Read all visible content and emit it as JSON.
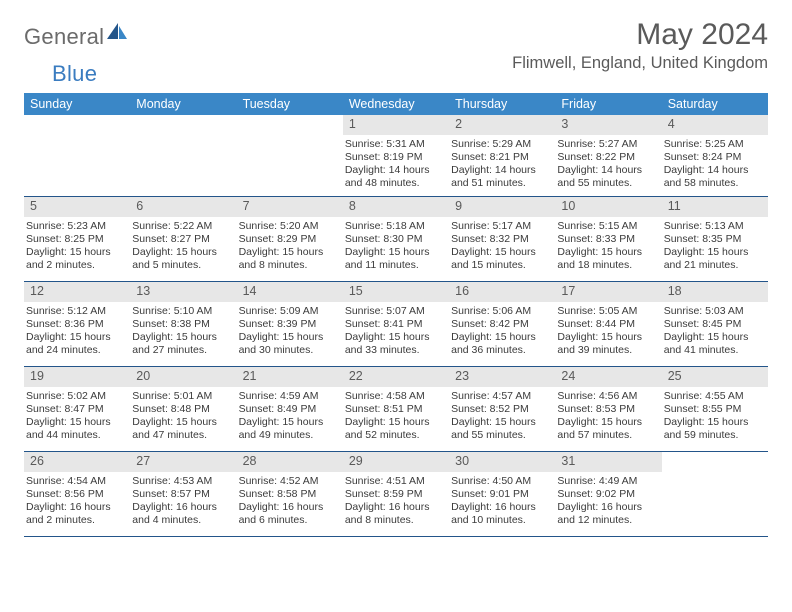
{
  "logo": {
    "text1": "General",
    "text2": "Blue"
  },
  "title": "May 2024",
  "location": "Flimwell, England, United Kingdom",
  "colors": {
    "header_bg": "#3a87c7",
    "header_text": "#ffffff",
    "week_divider": "#23558a",
    "daynum_bg": "#e7e7e7",
    "body_text": "#3b3b3b",
    "title_text": "#5a5a5a"
  },
  "daysOfWeek": [
    "Sunday",
    "Monday",
    "Tuesday",
    "Wednesday",
    "Thursday",
    "Friday",
    "Saturday"
  ],
  "weeks": [
    [
      null,
      null,
      null,
      {
        "n": "1",
        "sr": "5:31 AM",
        "ss": "8:19 PM",
        "dl1": "Daylight: 14 hours",
        "dl2": "and 48 minutes."
      },
      {
        "n": "2",
        "sr": "5:29 AM",
        "ss": "8:21 PM",
        "dl1": "Daylight: 14 hours",
        "dl2": "and 51 minutes."
      },
      {
        "n": "3",
        "sr": "5:27 AM",
        "ss": "8:22 PM",
        "dl1": "Daylight: 14 hours",
        "dl2": "and 55 minutes."
      },
      {
        "n": "4",
        "sr": "5:25 AM",
        "ss": "8:24 PM",
        "dl1": "Daylight: 14 hours",
        "dl2": "and 58 minutes."
      }
    ],
    [
      {
        "n": "5",
        "sr": "5:23 AM",
        "ss": "8:25 PM",
        "dl1": "Daylight: 15 hours",
        "dl2": "and 2 minutes."
      },
      {
        "n": "6",
        "sr": "5:22 AM",
        "ss": "8:27 PM",
        "dl1": "Daylight: 15 hours",
        "dl2": "and 5 minutes."
      },
      {
        "n": "7",
        "sr": "5:20 AM",
        "ss": "8:29 PM",
        "dl1": "Daylight: 15 hours",
        "dl2": "and 8 minutes."
      },
      {
        "n": "8",
        "sr": "5:18 AM",
        "ss": "8:30 PM",
        "dl1": "Daylight: 15 hours",
        "dl2": "and 11 minutes."
      },
      {
        "n": "9",
        "sr": "5:17 AM",
        "ss": "8:32 PM",
        "dl1": "Daylight: 15 hours",
        "dl2": "and 15 minutes."
      },
      {
        "n": "10",
        "sr": "5:15 AM",
        "ss": "8:33 PM",
        "dl1": "Daylight: 15 hours",
        "dl2": "and 18 minutes."
      },
      {
        "n": "11",
        "sr": "5:13 AM",
        "ss": "8:35 PM",
        "dl1": "Daylight: 15 hours",
        "dl2": "and 21 minutes."
      }
    ],
    [
      {
        "n": "12",
        "sr": "5:12 AM",
        "ss": "8:36 PM",
        "dl1": "Daylight: 15 hours",
        "dl2": "and 24 minutes."
      },
      {
        "n": "13",
        "sr": "5:10 AM",
        "ss": "8:38 PM",
        "dl1": "Daylight: 15 hours",
        "dl2": "and 27 minutes."
      },
      {
        "n": "14",
        "sr": "5:09 AM",
        "ss": "8:39 PM",
        "dl1": "Daylight: 15 hours",
        "dl2": "and 30 minutes."
      },
      {
        "n": "15",
        "sr": "5:07 AM",
        "ss": "8:41 PM",
        "dl1": "Daylight: 15 hours",
        "dl2": "and 33 minutes."
      },
      {
        "n": "16",
        "sr": "5:06 AM",
        "ss": "8:42 PM",
        "dl1": "Daylight: 15 hours",
        "dl2": "and 36 minutes."
      },
      {
        "n": "17",
        "sr": "5:05 AM",
        "ss": "8:44 PM",
        "dl1": "Daylight: 15 hours",
        "dl2": "and 39 minutes."
      },
      {
        "n": "18",
        "sr": "5:03 AM",
        "ss": "8:45 PM",
        "dl1": "Daylight: 15 hours",
        "dl2": "and 41 minutes."
      }
    ],
    [
      {
        "n": "19",
        "sr": "5:02 AM",
        "ss": "8:47 PM",
        "dl1": "Daylight: 15 hours",
        "dl2": "and 44 minutes."
      },
      {
        "n": "20",
        "sr": "5:01 AM",
        "ss": "8:48 PM",
        "dl1": "Daylight: 15 hours",
        "dl2": "and 47 minutes."
      },
      {
        "n": "21",
        "sr": "4:59 AM",
        "ss": "8:49 PM",
        "dl1": "Daylight: 15 hours",
        "dl2": "and 49 minutes."
      },
      {
        "n": "22",
        "sr": "4:58 AM",
        "ss": "8:51 PM",
        "dl1": "Daylight: 15 hours",
        "dl2": "and 52 minutes."
      },
      {
        "n": "23",
        "sr": "4:57 AM",
        "ss": "8:52 PM",
        "dl1": "Daylight: 15 hours",
        "dl2": "and 55 minutes."
      },
      {
        "n": "24",
        "sr": "4:56 AM",
        "ss": "8:53 PM",
        "dl1": "Daylight: 15 hours",
        "dl2": "and 57 minutes."
      },
      {
        "n": "25",
        "sr": "4:55 AM",
        "ss": "8:55 PM",
        "dl1": "Daylight: 15 hours",
        "dl2": "and 59 minutes."
      }
    ],
    [
      {
        "n": "26",
        "sr": "4:54 AM",
        "ss": "8:56 PM",
        "dl1": "Daylight: 16 hours",
        "dl2": "and 2 minutes."
      },
      {
        "n": "27",
        "sr": "4:53 AM",
        "ss": "8:57 PM",
        "dl1": "Daylight: 16 hours",
        "dl2": "and 4 minutes."
      },
      {
        "n": "28",
        "sr": "4:52 AM",
        "ss": "8:58 PM",
        "dl1": "Daylight: 16 hours",
        "dl2": "and 6 minutes."
      },
      {
        "n": "29",
        "sr": "4:51 AM",
        "ss": "8:59 PM",
        "dl1": "Daylight: 16 hours",
        "dl2": "and 8 minutes."
      },
      {
        "n": "30",
        "sr": "4:50 AM",
        "ss": "9:01 PM",
        "dl1": "Daylight: 16 hours",
        "dl2": "and 10 minutes."
      },
      {
        "n": "31",
        "sr": "4:49 AM",
        "ss": "9:02 PM",
        "dl1": "Daylight: 16 hours",
        "dl2": "and 12 minutes."
      },
      null
    ]
  ]
}
